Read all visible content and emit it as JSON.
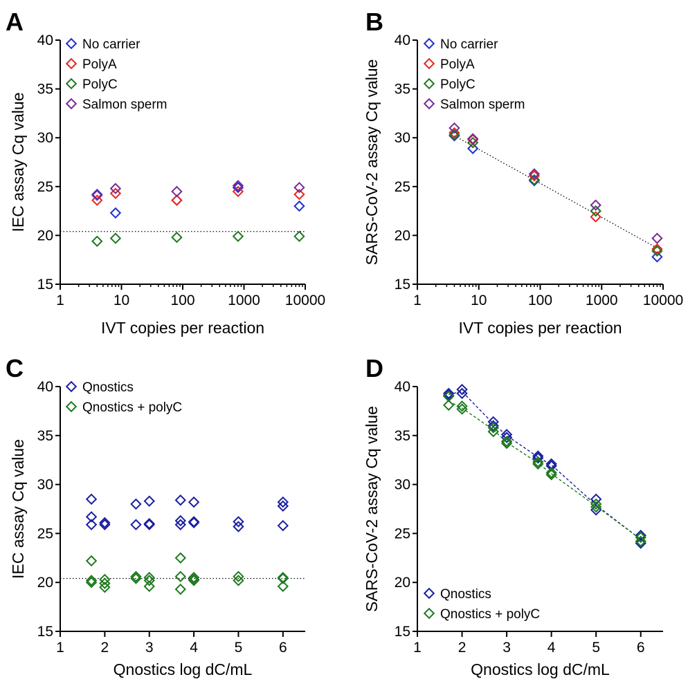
{
  "chart_data": [
    {
      "panel_label": "A",
      "type": "scatter",
      "xlabel": "IVT copies per reaction",
      "ylabel": "IEC assay Cq value",
      "xscale": "log",
      "xlim": [
        1,
        10000
      ],
      "ylim": [
        15,
        40
      ],
      "xticks": [
        "1",
        "10",
        "100",
        "1000",
        "10000"
      ],
      "yticks": [
        "15",
        "20",
        "25",
        "30",
        "35",
        "40"
      ],
      "reference_line": {
        "y": 20.4,
        "style": "dotted"
      },
      "legend_position": "top-left",
      "series": [
        {
          "name": "No carrier",
          "color": "#1f2fd1",
          "points": [
            [
              4,
              24.2
            ],
            [
              8,
              22.3
            ],
            [
              80,
              23.6
            ],
            [
              800,
              24.9
            ],
            [
              8000,
              23.0
            ]
          ]
        },
        {
          "name": "PolyA",
          "color": "#e8261f",
          "points": [
            [
              4,
              23.6
            ],
            [
              8,
              24.3
            ],
            [
              80,
              23.6
            ],
            [
              800,
              24.5
            ],
            [
              8000,
              24.2
            ]
          ]
        },
        {
          "name": "PolyC",
          "color": "#1f7a1f",
          "points": [
            [
              4,
              19.4
            ],
            [
              8,
              19.7
            ],
            [
              80,
              19.8
            ],
            [
              800,
              19.9
            ],
            [
              8000,
              19.9
            ]
          ]
        },
        {
          "name": "Salmon sperm",
          "color": "#7b2a96",
          "points": [
            [
              4,
              24.1
            ],
            [
              8,
              24.8
            ],
            [
              80,
              24.5
            ],
            [
              800,
              25.1
            ],
            [
              8000,
              24.9
            ]
          ]
        }
      ]
    },
    {
      "panel_label": "B",
      "type": "scatter",
      "xlabel": "IVT copies per reaction",
      "ylabel": "SARS-CoV-2 assay Cq value",
      "xscale": "log",
      "xlim": [
        1,
        10000
      ],
      "ylim": [
        15,
        40
      ],
      "xticks": [
        "1",
        "10",
        "100",
        "1000",
        "10000"
      ],
      "yticks": [
        "15",
        "20",
        "25",
        "30",
        "35",
        "40"
      ],
      "legend_position": "top-left",
      "fit_line": {
        "style": "dotted",
        "points": [
          [
            4,
            30.2
          ],
          [
            8000,
            18.7
          ]
        ]
      },
      "series": [
        {
          "name": "No carrier",
          "color": "#1f2fd1",
          "points": [
            [
              4,
              30.2
            ],
            [
              8,
              28.9
            ],
            [
              80,
              25.6
            ],
            [
              800,
              22.5
            ],
            [
              8000,
              17.8
            ]
          ]
        },
        {
          "name": "PolyA",
          "color": "#e8261f",
          "points": [
            [
              4,
              30.5
            ],
            [
              8,
              29.8
            ],
            [
              80,
              26.1
            ],
            [
              800,
              21.9
            ],
            [
              8000,
              18.6
            ]
          ]
        },
        {
          "name": "PolyC",
          "color": "#1f7a1f",
          "points": [
            [
              4,
              30.3
            ],
            [
              8,
              29.5
            ],
            [
              80,
              25.7
            ],
            [
              800,
              22.5
            ],
            [
              8000,
              18.4
            ]
          ]
        },
        {
          "name": "Salmon sperm",
          "color": "#7b2a96",
          "points": [
            [
              4,
              31.0
            ],
            [
              8,
              29.9
            ],
            [
              80,
              26.3
            ],
            [
              800,
              23.1
            ],
            [
              8000,
              19.7
            ]
          ]
        }
      ]
    },
    {
      "panel_label": "C",
      "type": "scatter",
      "xlabel": "Qnostics log dC/mL",
      "ylabel": "IEC assay Cq value",
      "xscale": "linear",
      "xlim": [
        1,
        6.5
      ],
      "ylim": [
        15,
        40
      ],
      "xticks": [
        "1",
        "2",
        "3",
        "4",
        "5",
        "6"
      ],
      "yticks": [
        "15",
        "20",
        "25",
        "30",
        "35",
        "40"
      ],
      "reference_line": {
        "y": 20.4,
        "style": "dotted"
      },
      "legend_position": "top-left",
      "series": [
        {
          "name": "Qnostics",
          "color": "#1a1fa0",
          "points": [
            [
              1.7,
              28.5
            ],
            [
              1.7,
              26.7
            ],
            [
              1.7,
              25.9
            ],
            [
              2.0,
              26.1
            ],
            [
              2.0,
              25.9
            ],
            [
              2.7,
              28.0
            ],
            [
              2.7,
              25.9
            ],
            [
              3.0,
              28.3
            ],
            [
              3.0,
              26.0
            ],
            [
              3.0,
              25.9
            ],
            [
              3.7,
              28.4
            ],
            [
              3.7,
              26.3
            ],
            [
              3.7,
              25.9
            ],
            [
              4.0,
              28.2
            ],
            [
              4.0,
              26.2
            ],
            [
              4.0,
              26.1
            ],
            [
              5.0,
              26.2
            ],
            [
              5.0,
              25.7
            ],
            [
              6.0,
              28.2
            ],
            [
              6.0,
              27.8
            ],
            [
              6.0,
              25.8
            ]
          ]
        },
        {
          "name": "Qnostics + polyC",
          "color": "#1f7a1f",
          "points": [
            [
              1.7,
              22.2
            ],
            [
              1.7,
              20.2
            ],
            [
              1.7,
              20.0
            ],
            [
              2.0,
              20.3
            ],
            [
              2.0,
              19.9
            ],
            [
              2.0,
              19.5
            ],
            [
              2.7,
              20.6
            ],
            [
              2.7,
              20.4
            ],
            [
              3.0,
              20.5
            ],
            [
              3.0,
              20.2
            ],
            [
              3.0,
              19.6
            ],
            [
              3.7,
              22.5
            ],
            [
              3.7,
              20.6
            ],
            [
              3.7,
              19.3
            ],
            [
              4.0,
              20.5
            ],
            [
              4.0,
              20.3
            ],
            [
              4.0,
              20.2
            ],
            [
              5.0,
              20.6
            ],
            [
              5.0,
              20.2
            ],
            [
              6.0,
              20.5
            ],
            [
              6.0,
              20.4
            ],
            [
              6.0,
              19.6
            ]
          ]
        }
      ]
    },
    {
      "panel_label": "D",
      "type": "line",
      "xlabel": "Qnostics log dC/mL",
      "ylabel": "SARS-CoV-2 assay Cq value",
      "xscale": "linear",
      "xlim": [
        1,
        6.5
      ],
      "ylim": [
        15,
        40
      ],
      "xticks": [
        "1",
        "2",
        "3",
        "4",
        "5",
        "6"
      ],
      "yticks": [
        "15",
        "20",
        "25",
        "30",
        "35",
        "40"
      ],
      "legend_position": "bottom-left",
      "series": [
        {
          "name": "Qnostics",
          "color": "#1a1fa0",
          "line": "dashed",
          "points": [
            [
              1.7,
              39.3
            ],
            [
              1.7,
              39.1
            ],
            [
              2.0,
              39.7
            ],
            [
              2.0,
              39.3
            ],
            [
              2.7,
              36.4
            ],
            [
              2.7,
              36.0
            ],
            [
              3.0,
              35.1
            ],
            [
              3.0,
              34.8
            ],
            [
              3.7,
              32.9
            ],
            [
              3.7,
              32.7
            ],
            [
              4.0,
              32.1
            ],
            [
              4.0,
              31.9
            ],
            [
              5.0,
              28.5
            ],
            [
              5.0,
              27.4
            ],
            [
              6.0,
              24.8
            ],
            [
              6.0,
              24.0
            ]
          ],
          "line_points": [
            [
              1.7,
              39.2
            ],
            [
              2.0,
              39.5
            ],
            [
              2.7,
              36.2
            ],
            [
              3.0,
              35.0
            ],
            [
              3.7,
              32.8
            ],
            [
              4.0,
              32.0
            ],
            [
              5.0,
              27.9
            ],
            [
              6.0,
              24.4
            ]
          ]
        },
        {
          "name": "Qnostics + polyC",
          "color": "#1f7a1f",
          "line": "dashed",
          "points": [
            [
              1.7,
              39.0
            ],
            [
              1.7,
              38.1
            ],
            [
              2.0,
              38.0
            ],
            [
              2.0,
              37.7
            ],
            [
              2.7,
              35.8
            ],
            [
              2.7,
              35.4
            ],
            [
              3.0,
              34.4
            ],
            [
              3.0,
              34.2
            ],
            [
              3.7,
              32.3
            ],
            [
              3.7,
              32.1
            ],
            [
              4.0,
              31.2
            ],
            [
              4.0,
              31.0
            ],
            [
              5.0,
              28.0
            ],
            [
              5.0,
              27.7
            ],
            [
              6.0,
              24.6
            ],
            [
              6.0,
              24.2
            ]
          ],
          "line_points": [
            [
              1.7,
              38.5
            ],
            [
              2.0,
              37.8
            ],
            [
              2.7,
              35.6
            ],
            [
              3.0,
              34.3
            ],
            [
              3.7,
              32.2
            ],
            [
              4.0,
              31.1
            ],
            [
              5.0,
              27.8
            ],
            [
              6.0,
              24.4
            ]
          ]
        }
      ]
    }
  ]
}
